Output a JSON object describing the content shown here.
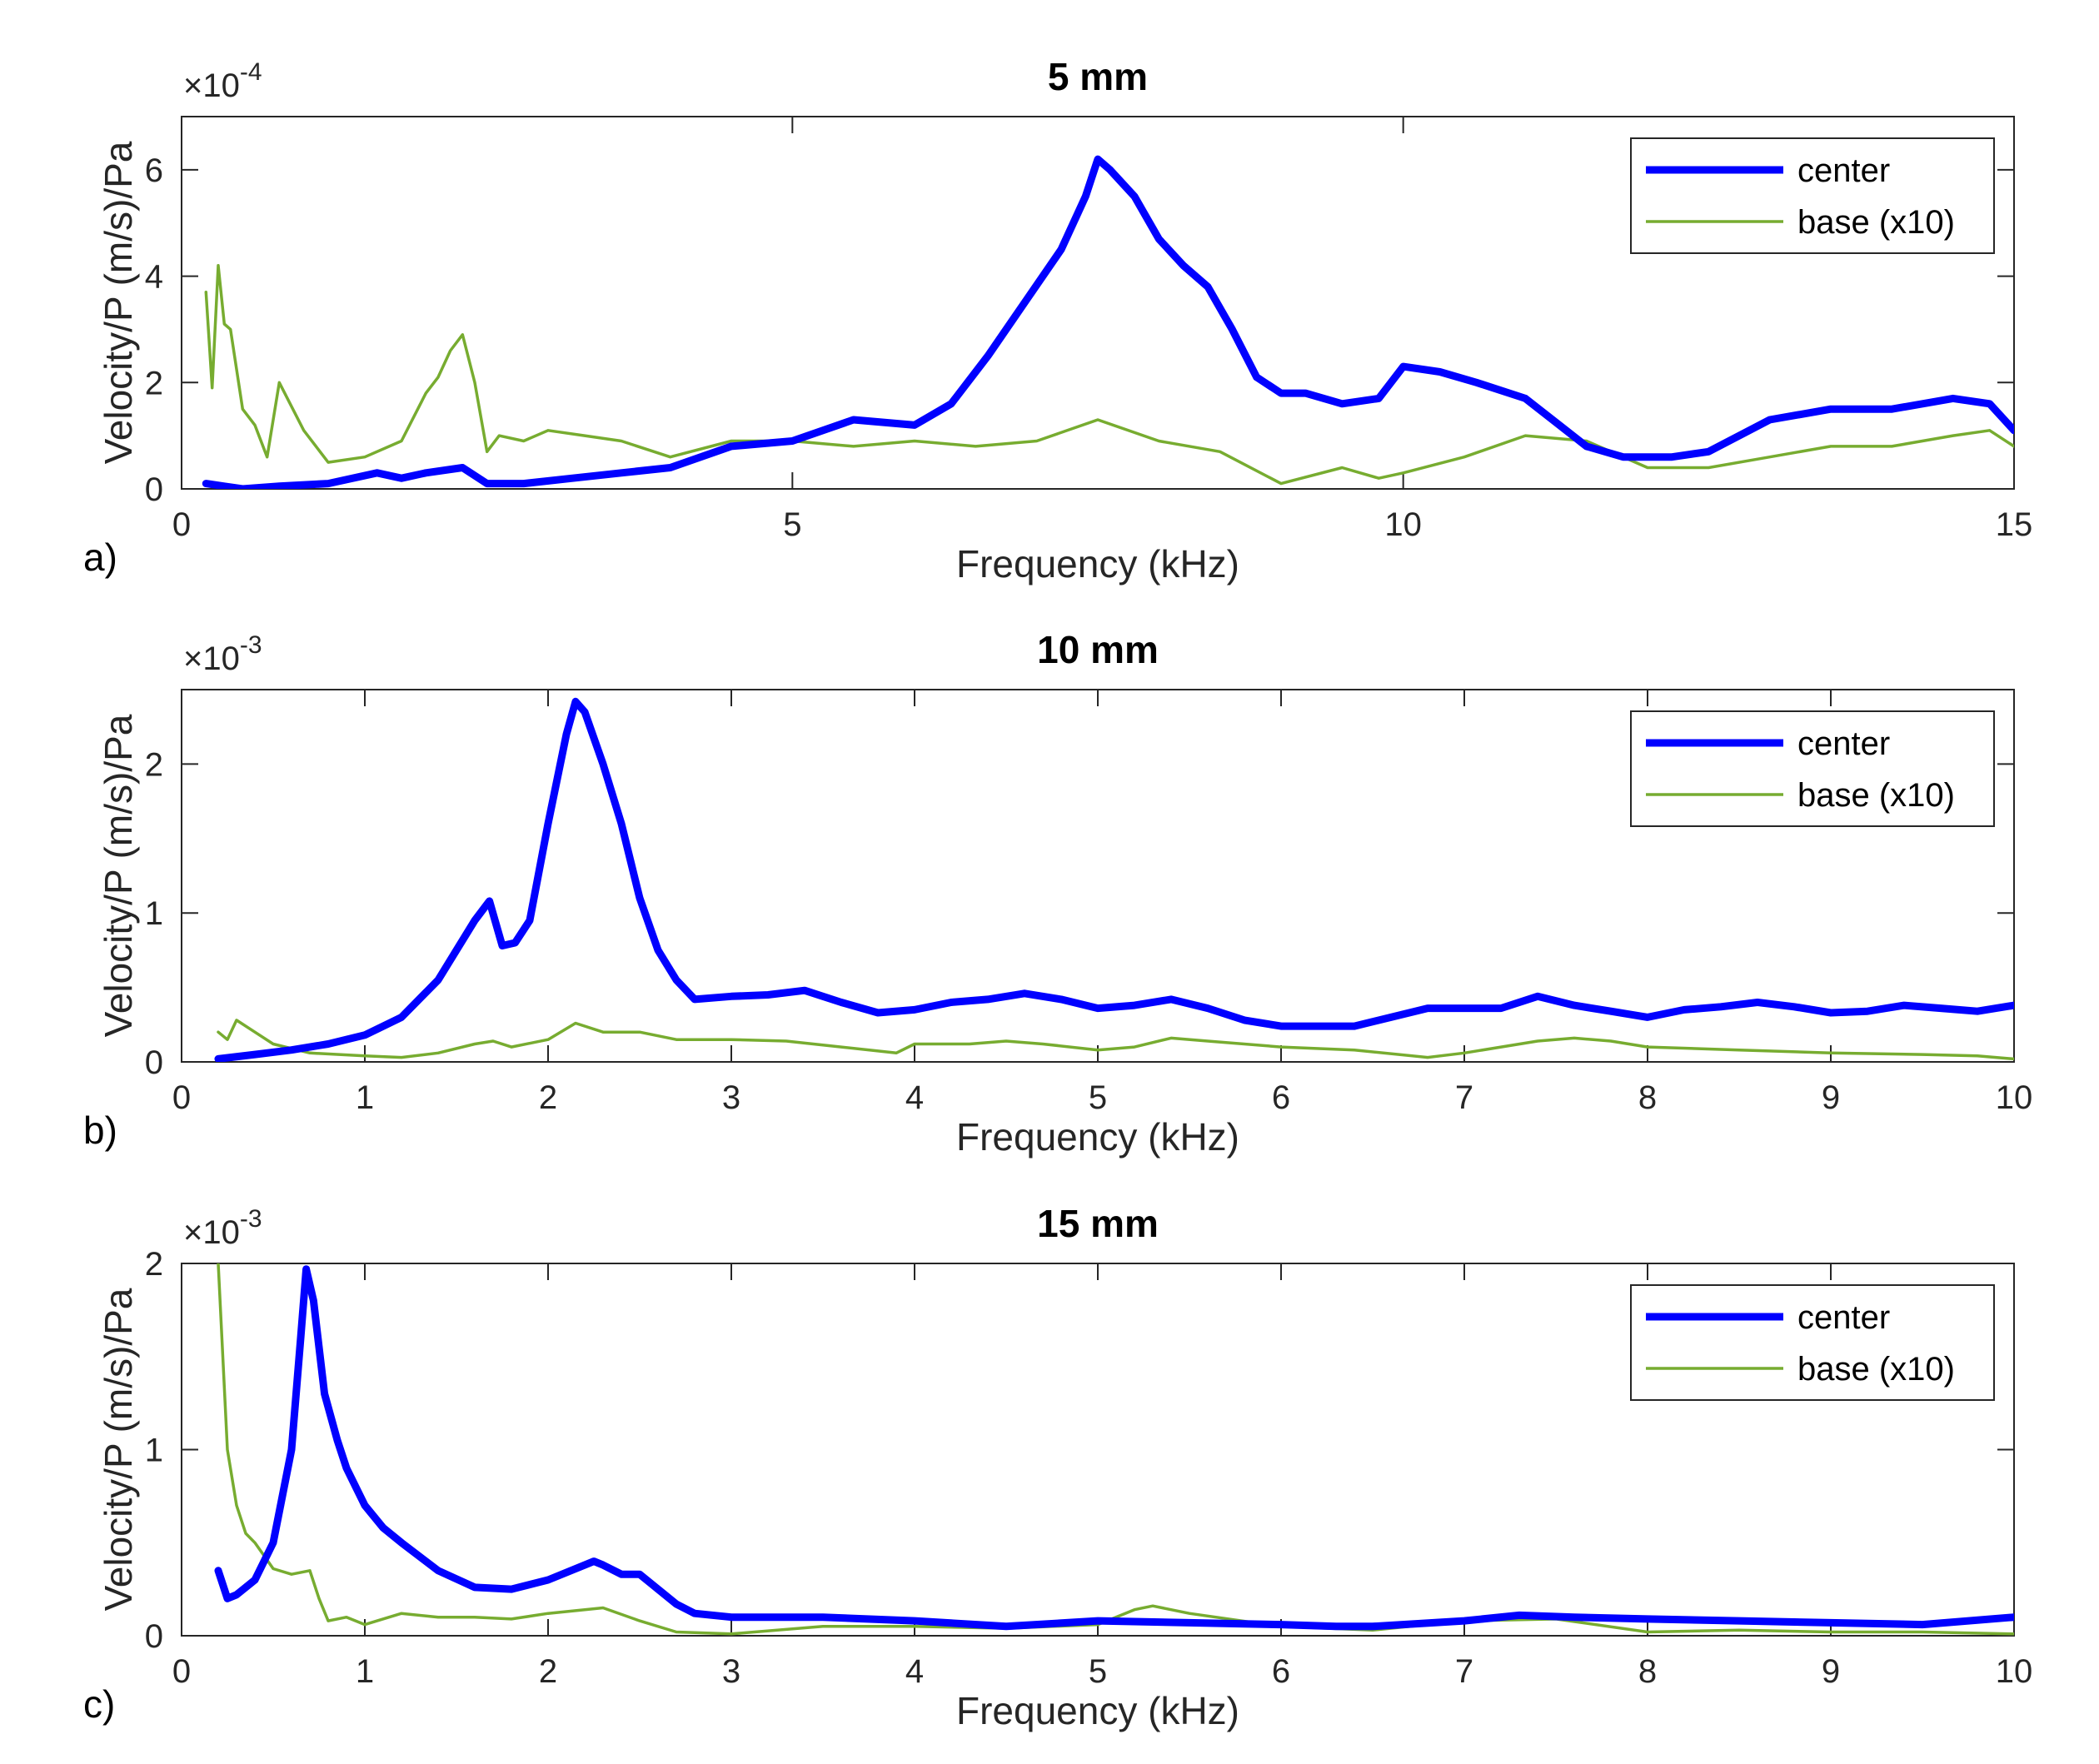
{
  "chart_data": [
    {
      "type": "line",
      "panel_label": "a)",
      "title": "5 mm",
      "xlabel": "Frequency (kHz)",
      "ylabel": "Velocity/P (m/s)/Pa",
      "y_exponent_label": "×10",
      "y_exponent_power": "-4",
      "xlim": [
        0,
        15
      ],
      "ylim": [
        0,
        7
      ],
      "xticks": [
        0,
        5,
        10,
        15
      ],
      "yticks": [
        0,
        2,
        4,
        6
      ],
      "grid": false,
      "legend": {
        "placement": "top-right",
        "entries": [
          "center",
          "base (x10)"
        ]
      },
      "series": [
        {
          "name": "center",
          "color": "#0000ff",
          "linewidth": 9,
          "x": [
            0.2,
            0.35,
            0.5,
            0.8,
            1.2,
            1.6,
            1.8,
            2.0,
            2.3,
            2.5,
            2.8,
            3.2,
            3.6,
            4.0,
            4.5,
            5.0,
            5.5,
            6.0,
            6.3,
            6.6,
            6.9,
            7.2,
            7.4,
            7.5,
            7.6,
            7.8,
            8.0,
            8.2,
            8.4,
            8.6,
            8.8,
            9.0,
            9.2,
            9.5,
            9.8,
            10.0,
            10.3,
            10.6,
            11.0,
            11.5,
            11.8,
            12.2,
            12.5,
            13.0,
            13.5,
            14.0,
            14.5,
            14.8,
            15.0
          ],
          "y": [
            0.1,
            0.05,
            0.0,
            0.05,
            0.1,
            0.3,
            0.2,
            0.3,
            0.4,
            0.1,
            0.1,
            0.2,
            0.3,
            0.4,
            0.8,
            0.9,
            1.3,
            1.2,
            1.6,
            2.5,
            3.5,
            4.5,
            5.5,
            6.2,
            6.0,
            5.5,
            4.7,
            4.2,
            3.8,
            3.0,
            2.1,
            1.8,
            1.8,
            1.6,
            1.7,
            2.3,
            2.2,
            2.0,
            1.7,
            0.8,
            0.6,
            0.6,
            0.7,
            1.3,
            1.5,
            1.5,
            1.7,
            1.6,
            1.1
          ]
        },
        {
          "name": "base (x10)",
          "color": "#77ac30",
          "linewidth": 3.5,
          "x": [
            0.2,
            0.25,
            0.3,
            0.35,
            0.4,
            0.5,
            0.6,
            0.7,
            0.8,
            1.0,
            1.2,
            1.5,
            1.8,
            2.0,
            2.1,
            2.2,
            2.3,
            2.4,
            2.5,
            2.6,
            2.8,
            3.0,
            3.3,
            3.6,
            4.0,
            4.5,
            5.0,
            5.5,
            6.0,
            6.5,
            7.0,
            7.5,
            8.0,
            8.5,
            9.0,
            9.5,
            9.8,
            10.0,
            10.5,
            11.0,
            11.5,
            12.0,
            12.5,
            13.0,
            13.5,
            14.0,
            14.5,
            14.8,
            15.0
          ],
          "y": [
            3.7,
            1.9,
            4.2,
            3.1,
            3.0,
            1.5,
            1.2,
            0.6,
            2.0,
            1.1,
            0.5,
            0.6,
            0.9,
            1.8,
            2.1,
            2.6,
            2.9,
            2.0,
            0.7,
            1.0,
            0.9,
            1.1,
            1.0,
            0.9,
            0.6,
            0.9,
            0.9,
            0.8,
            0.9,
            0.8,
            0.9,
            1.3,
            0.9,
            0.7,
            0.1,
            0.4,
            0.2,
            0.3,
            0.6,
            1.0,
            0.9,
            0.4,
            0.4,
            0.6,
            0.8,
            0.8,
            1.0,
            1.1,
            0.8
          ]
        }
      ]
    },
    {
      "type": "line",
      "panel_label": "b)",
      "title": "10 mm",
      "xlabel": "Frequency (kHz)",
      "ylabel": "Velocity/P (m/s)/Pa",
      "y_exponent_label": "×10",
      "y_exponent_power": "-3",
      "xlim": [
        0,
        10
      ],
      "ylim": [
        0,
        2.5
      ],
      "xticks": [
        0,
        1,
        2,
        3,
        4,
        5,
        6,
        7,
        8,
        9,
        10
      ],
      "yticks": [
        0,
        1,
        2
      ],
      "grid": false,
      "legend": {
        "placement": "top-right",
        "entries": [
          "center",
          "base (x10)"
        ]
      },
      "series": [
        {
          "name": "center",
          "color": "#0000ff",
          "linewidth": 9,
          "x": [
            0.2,
            0.4,
            0.6,
            0.8,
            1.0,
            1.2,
            1.4,
            1.5,
            1.6,
            1.68,
            1.75,
            1.82,
            1.9,
            2.0,
            2.1,
            2.15,
            2.2,
            2.3,
            2.4,
            2.5,
            2.6,
            2.7,
            2.8,
            3.0,
            3.2,
            3.4,
            3.6,
            3.8,
            4.0,
            4.2,
            4.4,
            4.6,
            4.8,
            5.0,
            5.2,
            5.4,
            5.6,
            5.8,
            6.0,
            6.2,
            6.4,
            6.6,
            6.8,
            7.0,
            7.2,
            7.4,
            7.6,
            7.8,
            8.0,
            8.2,
            8.4,
            8.6,
            8.8,
            9.0,
            9.2,
            9.4,
            9.6,
            9.8,
            10.0
          ],
          "y": [
            0.02,
            0.05,
            0.08,
            0.12,
            0.18,
            0.3,
            0.55,
            0.75,
            0.95,
            1.08,
            0.78,
            0.8,
            0.95,
            1.6,
            2.2,
            2.42,
            2.35,
            2.0,
            1.6,
            1.1,
            0.75,
            0.55,
            0.42,
            0.44,
            0.45,
            0.48,
            0.4,
            0.33,
            0.35,
            0.4,
            0.42,
            0.46,
            0.42,
            0.36,
            0.38,
            0.42,
            0.36,
            0.28,
            0.24,
            0.24,
            0.24,
            0.3,
            0.36,
            0.36,
            0.36,
            0.44,
            0.38,
            0.34,
            0.3,
            0.35,
            0.37,
            0.4,
            0.37,
            0.33,
            0.34,
            0.38,
            0.36,
            0.34,
            0.38
          ]
        },
        {
          "name": "base (x10)",
          "color": "#77ac30",
          "linewidth": 3.5,
          "x": [
            0.2,
            0.25,
            0.3,
            0.4,
            0.5,
            0.7,
            1.0,
            1.2,
            1.4,
            1.6,
            1.7,
            1.8,
            2.0,
            2.15,
            2.3,
            2.5,
            2.7,
            3.0,
            3.3,
            3.6,
            3.9,
            4.0,
            4.3,
            4.5,
            4.7,
            5.0,
            5.2,
            5.4,
            5.6,
            6.0,
            6.4,
            6.8,
            7.0,
            7.4,
            7.6,
            7.8,
            8.0,
            8.5,
            9.0,
            9.5,
            9.8,
            10.0
          ],
          "y": [
            0.2,
            0.15,
            0.28,
            0.2,
            0.12,
            0.06,
            0.04,
            0.03,
            0.06,
            0.12,
            0.14,
            0.1,
            0.15,
            0.26,
            0.2,
            0.2,
            0.15,
            0.15,
            0.14,
            0.1,
            0.06,
            0.12,
            0.12,
            0.14,
            0.12,
            0.08,
            0.1,
            0.16,
            0.14,
            0.1,
            0.08,
            0.03,
            0.06,
            0.14,
            0.16,
            0.14,
            0.1,
            0.08,
            0.06,
            0.05,
            0.04,
            0.02
          ]
        }
      ]
    },
    {
      "type": "line",
      "panel_label": "c)",
      "title": "15 mm",
      "xlabel": "Frequency (kHz)",
      "ylabel": "Velocity/P (m/s)/Pa",
      "y_exponent_label": "×10",
      "y_exponent_power": "-3",
      "xlim": [
        0,
        10
      ],
      "ylim": [
        0,
        2
      ],
      "xticks": [
        0,
        1,
        2,
        3,
        4,
        5,
        6,
        7,
        8,
        9,
        10
      ],
      "yticks": [
        0,
        1,
        2
      ],
      "grid": false,
      "legend": {
        "placement": "top-right",
        "entries": [
          "center",
          "base (x10)"
        ]
      },
      "series": [
        {
          "name": "center",
          "color": "#0000ff",
          "linewidth": 9,
          "x": [
            0.2,
            0.25,
            0.3,
            0.4,
            0.5,
            0.55,
            0.6,
            0.65,
            0.68,
            0.72,
            0.78,
            0.85,
            0.9,
            1.0,
            1.1,
            1.2,
            1.4,
            1.6,
            1.8,
            2.0,
            2.2,
            2.25,
            2.3,
            2.4,
            2.5,
            2.6,
            2.7,
            2.8,
            3.0,
            3.2,
            3.5,
            4.0,
            4.5,
            5.0,
            5.5,
            6.0,
            6.3,
            6.5,
            7.0,
            7.3,
            7.6,
            8.0,
            8.5,
            9.0,
            9.5,
            10.0
          ],
          "y": [
            0.35,
            0.2,
            0.22,
            0.3,
            0.5,
            0.75,
            1.0,
            1.6,
            1.97,
            1.8,
            1.3,
            1.05,
            0.9,
            0.7,
            0.58,
            0.5,
            0.35,
            0.26,
            0.25,
            0.3,
            0.38,
            0.4,
            0.38,
            0.33,
            0.33,
            0.25,
            0.17,
            0.12,
            0.1,
            0.1,
            0.1,
            0.08,
            0.05,
            0.08,
            0.07,
            0.06,
            0.05,
            0.05,
            0.08,
            0.11,
            0.1,
            0.09,
            0.08,
            0.07,
            0.06,
            0.1
          ]
        },
        {
          "name": "base (x10)",
          "color": "#77ac30",
          "linewidth": 3.5,
          "x": [
            0.2,
            0.22,
            0.25,
            0.3,
            0.35,
            0.4,
            0.5,
            0.6,
            0.7,
            0.75,
            0.8,
            0.9,
            1.0,
            1.2,
            1.4,
            1.6,
            1.8,
            2.0,
            2.2,
            2.3,
            2.5,
            2.7,
            3.0,
            3.5,
            4.0,
            4.5,
            5.0,
            5.2,
            5.3,
            5.5,
            6.0,
            6.5,
            7.0,
            7.5,
            8.0,
            8.5,
            9.0,
            9.5,
            10.0
          ],
          "y": [
            2.0,
            1.6,
            1.0,
            0.7,
            0.55,
            0.5,
            0.36,
            0.33,
            0.35,
            0.2,
            0.08,
            0.1,
            0.06,
            0.12,
            0.1,
            0.1,
            0.09,
            0.12,
            0.14,
            0.15,
            0.08,
            0.02,
            0.01,
            0.05,
            0.05,
            0.04,
            0.06,
            0.14,
            0.16,
            0.12,
            0.05,
            0.03,
            0.08,
            0.09,
            0.02,
            0.03,
            0.02,
            0.02,
            0.01
          ]
        }
      ]
    }
  ]
}
